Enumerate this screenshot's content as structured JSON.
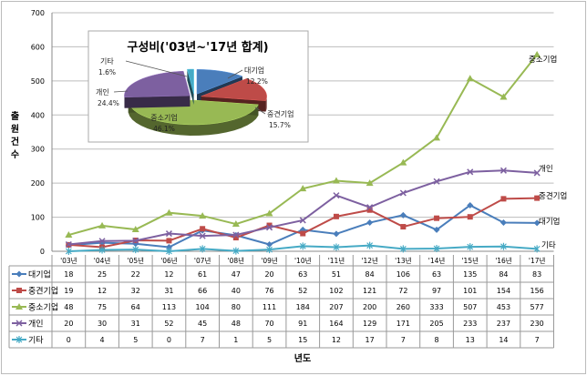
{
  "chart_data": [
    {
      "type": "line",
      "title": "",
      "xlabel": "년도",
      "ylabel": "출원건수",
      "ylim": [
        0,
        700
      ],
      "yticks": [
        0,
        100,
        200,
        300,
        400,
        500,
        600,
        700
      ],
      "grid": true,
      "legend": "data-table",
      "categories": [
        "'03년",
        "'04년",
        "'05년",
        "'06년",
        "'07년",
        "'08년",
        "'09년",
        "'10년",
        "'11년",
        "'12년",
        "'13년",
        "'14년",
        "'15년",
        "'16년",
        "'17년"
      ],
      "series": [
        {
          "name": "대기업",
          "color": "#4a7ebb",
          "marker": "diamond",
          "values": [
            18,
            25,
            22,
            12,
            61,
            47,
            20,
            63,
            51,
            84,
            106,
            63,
            135,
            84,
            83
          ]
        },
        {
          "name": "중견기업",
          "color": "#be4b48",
          "marker": "square",
          "values": [
            19,
            12,
            32,
            31,
            66,
            40,
            76,
            52,
            102,
            121,
            72,
            97,
            101,
            154,
            156
          ]
        },
        {
          "name": "중소기업",
          "color": "#98b954",
          "marker": "triangle",
          "values": [
            48,
            75,
            64,
            113,
            104,
            80,
            111,
            184,
            207,
            200,
            260,
            333,
            507,
            453,
            577
          ]
        },
        {
          "name": "개인",
          "color": "#7d60a0",
          "marker": "x",
          "values": [
            20,
            30,
            31,
            52,
            45,
            48,
            70,
            91,
            164,
            129,
            171,
            205,
            233,
            237,
            230
          ]
        },
        {
          "name": "기타",
          "color": "#46aac5",
          "marker": "star",
          "values": [
            0,
            4,
            5,
            0,
            7,
            1,
            5,
            15,
            12,
            17,
            7,
            8,
            13,
            14,
            7
          ]
        }
      ]
    },
    {
      "type": "pie",
      "title": "구성비('03년~'17년 합계)",
      "slices": [
        {
          "name": "대기업",
          "value": 12.2,
          "label": "12.2%",
          "color": "#4a7ebb"
        },
        {
          "name": "중견기업",
          "value": 15.7,
          "label": "15.7%",
          "color": "#be4b48"
        },
        {
          "name": "중소기업",
          "value": 46.1,
          "label": "46.1%",
          "color": "#98b954"
        },
        {
          "name": "개인",
          "value": 24.4,
          "label": "24.4%",
          "color": "#7d60a0"
        },
        {
          "name": "기타",
          "value": 1.6,
          "label": "1.6%",
          "color": "#46aac5"
        }
      ]
    }
  ]
}
